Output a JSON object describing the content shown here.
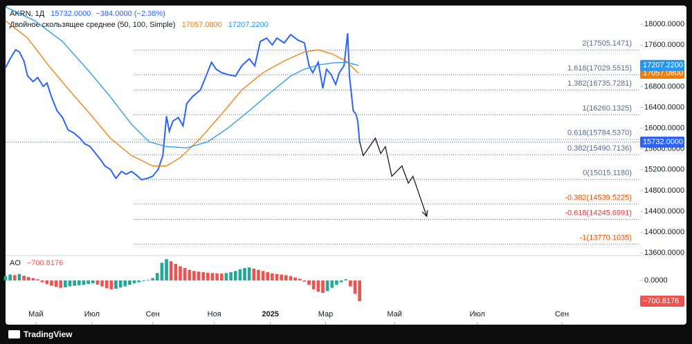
{
  "chart_data": [
    {
      "type": "line",
      "symbol": "AKRN, 1Д",
      "last_label": "15732.0000",
      "change_label": "−384.0000 (−2.38%)",
      "indicator": "Двойное скользящее среднее (50, 100, Simple)",
      "xlim": [
        0,
        690
      ],
      "ylim": [
        13550,
        18360
      ],
      "xticks": [
        {
          "value": 33,
          "label": "Май"
        },
        {
          "value": 94,
          "label": "Июл"
        },
        {
          "value": 160,
          "label": "Сен"
        },
        {
          "value": 227,
          "label": "Ноя"
        },
        {
          "value": 288,
          "label": "2025"
        },
        {
          "value": 348,
          "label": "Мар"
        },
        {
          "value": 423,
          "label": "Май"
        },
        {
          "value": 513,
          "label": "Июл"
        },
        {
          "value": 605,
          "label": "Сен"
        }
      ],
      "yticks": [
        {
          "value": 13600,
          "label": "13600.0000"
        },
        {
          "value": 14000,
          "label": "14000.0000"
        },
        {
          "value": 14400,
          "label": "14400.0000"
        },
        {
          "value": 14800,
          "label": "14800.0000"
        },
        {
          "value": 15200,
          "label": "15200.0000"
        },
        {
          "value": 15600,
          "label": "15600.0000"
        },
        {
          "value": 16000,
          "label": "16000.0000"
        },
        {
          "value": 16400,
          "label": "16400.0000"
        },
        {
          "value": 16800,
          "label": "16800.0000"
        },
        {
          "value": 17200,
          "label": "17200.0000"
        },
        {
          "value": 17600,
          "label": "17600.0000"
        },
        {
          "value": 18000,
          "label": "18000.0000"
        }
      ],
      "series": [
        {
          "name": "AKRN, 1Д",
          "color": "#2962ff",
          "x": [
            0,
            5,
            11,
            15,
            20,
            24,
            30,
            35,
            41,
            45,
            50,
            56,
            62,
            68,
            74,
            81,
            86,
            92,
            98,
            104,
            108,
            114,
            120,
            126,
            131,
            137,
            143,
            148,
            154,
            160,
            166,
            171,
            175,
            178,
            182,
            188,
            193,
            197,
            203,
            212,
            218,
            224,
            229,
            235,
            242,
            250,
            257,
            265,
            271,
            277,
            284,
            290,
            295,
            303,
            310,
            318,
            325,
            330,
            334,
            340,
            345,
            349,
            354,
            359,
            363,
            368,
            372,
            374,
            378,
            381,
            383,
            385
          ],
          "values": [
            17162,
            17335,
            17508,
            17468,
            17295,
            17003,
            16897,
            16976,
            16804,
            16870,
            16604,
            16338,
            16205,
            15966,
            15913,
            15807,
            15700,
            15647,
            15514,
            15381,
            15275,
            15208,
            15036,
            15169,
            15115,
            15169,
            15089,
            15009,
            15036,
            15076,
            15208,
            15474,
            16232,
            15940,
            16139,
            16205,
            16046,
            16471,
            16604,
            16737,
            17003,
            17269,
            17136,
            17069,
            17030,
            17003,
            17202,
            17335,
            17202,
            17668,
            17734,
            17601,
            17734,
            17641,
            17801,
            17694,
            17641,
            17202,
            17069,
            17269,
            16764,
            17136,
            17030,
            16843,
            17069,
            17202,
            17827,
            17003,
            16338,
            16272,
            16139,
            15732
          ]
        },
        {
          "color": "#f57c00",
          "last_label": "17057.0800",
          "x": [
            0,
            24,
            47,
            69,
            92,
            114,
            137,
            160,
            175,
            190,
            212,
            235,
            257,
            280,
            303,
            325,
            340,
            355,
            370,
            384
          ],
          "values": [
            18066,
            17734,
            17202,
            16737,
            16272,
            15807,
            15474,
            15275,
            15275,
            15434,
            15807,
            16272,
            16737,
            17069,
            17295,
            17468,
            17508,
            17428,
            17295,
            17057.08
          ]
        },
        {
          "color": "#2196f3",
          "last_label": "17207.2200",
          "x": [
            0,
            32,
            62,
            92,
            114,
            137,
            156,
            175,
            197,
            220,
            242,
            265,
            287,
            310,
            325,
            340,
            355,
            370,
            384
          ],
          "values": [
            18332,
            18066,
            17668,
            17069,
            16604,
            16073,
            15740,
            15647,
            15621,
            15740,
            16006,
            16338,
            16671,
            17003,
            17136,
            17216,
            17256,
            17269,
            17207.22
          ]
        },
        {
          "color": "#131722",
          "arrow": true,
          "x": [
            385,
            389,
            402,
            408,
            413,
            420,
            431,
            438,
            443,
            458
          ],
          "values": [
            15740,
            15474,
            15807,
            15514,
            15647,
            15076,
            15275,
            14943,
            15076,
            14305
          ]
        }
      ],
      "fib_levels": [
        {
          "value": 17505.1471,
          "label": "2(17505.1471)",
          "color": "#5b6b8c"
        },
        {
          "value": 17029.5515,
          "label": "1.618(17029.5515)",
          "color": "#5b6b8c"
        },
        {
          "value": 16735.7281,
          "label": "1.382(16735.7281)",
          "color": "#5b6b8c"
        },
        {
          "value": 16260.1325,
          "label": "1(16260.1325)",
          "color": "#5b6b8c"
        },
        {
          "value": 15784.537,
          "label": "0.618(15784.5370)",
          "color": "#5b6b8c"
        },
        {
          "value": 15490.7136,
          "label": "0.382(15490.7136)",
          "color": "#5b6b8c"
        },
        {
          "value": 15015.118,
          "label": "0(15015.1180)",
          "color": "#5b6b8c"
        },
        {
          "value": 14539.5225,
          "label": "-0.382(14539.5225)",
          "color": "#e65100"
        },
        {
          "value": 14245.6991,
          "label": "-0.618(14245.6991)",
          "color": "#e53935"
        },
        {
          "value": 13770.1035,
          "label": "-1(13770.1035)",
          "color": "#e65100"
        }
      ]
    },
    {
      "type": "histogram-ao",
      "title": "AO",
      "last_label": "−700.8176",
      "xlim": [
        0,
        690
      ],
      "ylim": [
        -1495,
        794
      ],
      "yticks": [
        {
          "value": 0,
          "label": "0.0000"
        }
      ],
      "up_color": "#26a69a",
      "down_color": "#ef5350",
      "x": [
        0,
        5,
        10,
        15,
        20,
        25,
        30,
        35,
        40,
        45,
        50,
        55,
        60,
        65,
        70,
        75,
        80,
        85,
        90,
        95,
        100,
        105,
        110,
        115,
        120,
        125,
        130,
        135,
        140,
        145,
        150,
        155,
        160,
        165,
        170,
        175,
        180,
        185,
        190,
        195,
        200,
        205,
        210,
        215,
        220,
        225,
        230,
        235,
        240,
        245,
        250,
        255,
        260,
        265,
        270,
        275,
        280,
        285,
        290,
        295,
        300,
        305,
        310,
        315,
        320,
        325,
        330,
        335,
        340,
        345,
        350,
        355,
        360,
        365,
        370,
        375,
        380,
        385
      ],
      "values": [
        150,
        200,
        180,
        220,
        160,
        120,
        80,
        40,
        -60,
        -120,
        -180,
        -220,
        -250,
        -230,
        -200,
        -180,
        -160,
        -150,
        -120,
        -100,
        -140,
        -200,
        -260,
        -300,
        -280,
        -240,
        -200,
        -150,
        -100,
        -60,
        -20,
        20,
        80,
        250,
        600,
        720,
        650,
        560,
        480,
        420,
        360,
        320,
        300,
        280,
        260,
        250,
        240,
        230,
        250,
        280,
        320,
        380,
        420,
        440,
        400,
        360,
        320,
        280,
        240,
        220,
        200,
        180,
        150,
        100,
        60,
        -40,
        -150,
        -300,
        -380,
        -420,
        -360,
        -250,
        -150,
        -60,
        40,
        -200,
        -450,
        -700.8176
      ]
    }
  ],
  "branding": "TradingView"
}
